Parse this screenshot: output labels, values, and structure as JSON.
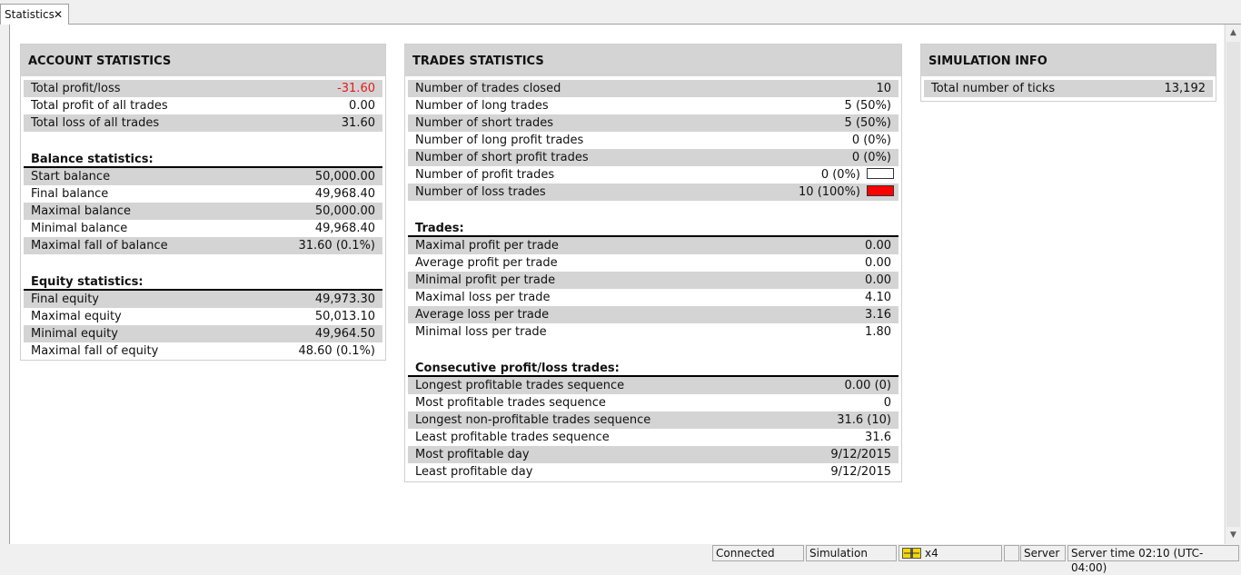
{
  "tab": {
    "label": "Statistics",
    "close": "✕"
  },
  "account": {
    "title": "ACCOUNT STATISTICS",
    "summary": [
      {
        "label": "Total profit/loss",
        "value": "-31.60",
        "negative": true
      },
      {
        "label": "Total profit of all trades",
        "value": "0.00"
      },
      {
        "label": "Total loss of all trades",
        "value": "31.60"
      }
    ],
    "balance_title": "Balance statistics:",
    "balance": [
      {
        "label": "Start balance",
        "value": "50,000.00"
      },
      {
        "label": "Final balance",
        "value": "49,968.40"
      },
      {
        "label": "Maximal balance",
        "value": "50,000.00"
      },
      {
        "label": "Minimal balance",
        "value": "49,968.40"
      },
      {
        "label": "Maximal fall of balance",
        "value": "31.60 (0.1%)"
      }
    ],
    "equity_title": "Equity statistics:",
    "equity": [
      {
        "label": "Final equity",
        "value": "49,973.30"
      },
      {
        "label": "Maximal equity",
        "value": "50,013.10"
      },
      {
        "label": "Minimal equity",
        "value": "49,964.50"
      },
      {
        "label": "Maximal fall of equity",
        "value": "48.60 (0.1%)"
      }
    ]
  },
  "trades": {
    "title": "TRADES STATISTICS",
    "summary": [
      {
        "label": "Number of trades closed",
        "value": "10"
      },
      {
        "label": "Number of long trades",
        "value": "5 (50%)"
      },
      {
        "label": "Number of short trades",
        "value": "5 (50%)"
      },
      {
        "label": "Number of long profit trades",
        "value": "0 (0%)"
      },
      {
        "label": "Number of short profit trades",
        "value": "0 (0%)"
      },
      {
        "label": "Number of profit trades",
        "value": "0 (0%)",
        "swatch": "#ffffff"
      },
      {
        "label": "Number of loss trades",
        "value": "10 (100%)",
        "swatch": "#ff0000"
      }
    ],
    "trades_title": "Trades:",
    "trade_rows": [
      {
        "label": "Maximal profit per trade",
        "value": "0.00"
      },
      {
        "label": "Average profit per trade",
        "value": "0.00"
      },
      {
        "label": "Minimal profit per trade",
        "value": "0.00"
      },
      {
        "label": "Maximal loss per trade",
        "value": "4.10"
      },
      {
        "label": "Average loss per trade",
        "value": "3.16"
      },
      {
        "label": "Minimal loss per trade",
        "value": "1.80"
      }
    ],
    "consecutive_title": "Consecutive profit/loss trades:",
    "consecutive": [
      {
        "label": "Longest profitable trades sequence",
        "value": "0.00 (0)"
      },
      {
        "label": "Most profitable trades sequence",
        "value": "0"
      },
      {
        "label": "Longest non-profitable trades sequence",
        "value": "31.6 (10)"
      },
      {
        "label": "Least profitable trades sequence",
        "value": "31.6"
      },
      {
        "label": "Most profitable day",
        "value": "9/12/2015"
      },
      {
        "label": "Least profitable day",
        "value": "9/12/2015"
      }
    ]
  },
  "simulation": {
    "title": "SIMULATION INFO",
    "rows": [
      {
        "label": "Total number of ticks",
        "value": "13,192"
      }
    ]
  },
  "status": {
    "connection": "Connected",
    "mode": "Simulation",
    "speed": "x4",
    "empty": "",
    "server": "Server",
    "server_time": "Server time 02:10 (UTC-04:00)"
  },
  "colors": {
    "negative": "#e21b1b",
    "row_alt": "#d4d4d4",
    "loss_swatch": "#ff0000"
  }
}
